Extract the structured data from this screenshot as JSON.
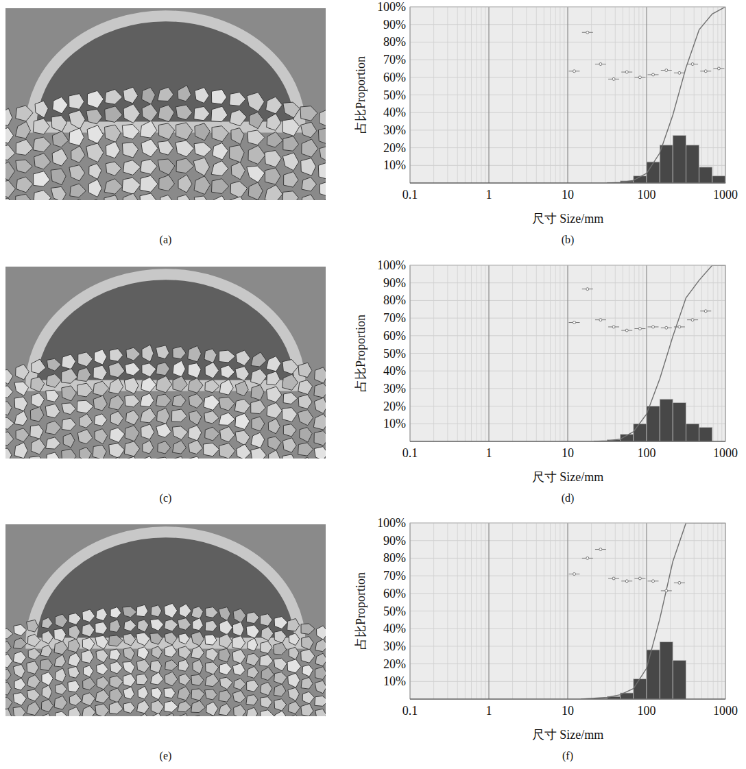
{
  "images": [
    {
      "caption": "(a)"
    },
    {
      "caption": "(c)"
    },
    {
      "caption": "(e)"
    }
  ],
  "chart_data": [
    {
      "type": "histogram",
      "caption": "(b)",
      "x_label": "尺寸 Size/mm",
      "y_label": "占比Proportion",
      "bins": [
        31.6,
        46.4,
        68.1,
        100,
        147,
        215,
        316,
        464,
        681,
        1000
      ],
      "values": [
        0.3,
        1.2,
        4,
        12,
        21.5,
        27,
        21.5,
        9,
        4
      ],
      "cumulative": {
        "x": [
          31.6,
          46.4,
          68.1,
          100,
          147,
          215,
          316,
          464,
          681,
          1000
        ],
        "values": [
          0,
          0.3,
          1.5,
          5.5,
          17,
          38.5,
          65.5,
          87,
          96,
          100
        ]
      },
      "points": {
        "x": [
          12.1,
          17.8,
          26.1,
          38.3,
          56.2,
          82.5,
          121,
          178,
          261,
          383,
          562,
          825
        ],
        "values": [
          63.5,
          85.5,
          67.5,
          59,
          63,
          60,
          61.5,
          64,
          62.5,
          67.5,
          63.5,
          65
        ]
      },
      "xlim": [
        0.1,
        1000
      ],
      "ylim": [
        0,
        100
      ],
      "xticks": [
        0.1,
        1,
        10,
        100,
        1000
      ],
      "yticks": [
        {
          "value": 10,
          "label": "10%"
        },
        {
          "value": 20,
          "label": "20%"
        },
        {
          "value": 30,
          "label": "30%"
        },
        {
          "value": 40,
          "label": "40%"
        },
        {
          "value": 50,
          "label": "50%"
        },
        {
          "value": 60,
          "label": "60%"
        },
        {
          "value": 70,
          "label": "70%"
        },
        {
          "value": 80,
          "label": "80%"
        },
        {
          "value": 90,
          "label": "90%"
        },
        {
          "value": 100,
          "label": "100%"
        }
      ],
      "log": "x",
      "grid": true,
      "color": "#474747"
    },
    {
      "type": "histogram",
      "caption": "(d)",
      "x_label": "尺寸 Size/mm",
      "y_label": "占比Proportion",
      "bins": [
        21.5,
        31.6,
        46.4,
        68.1,
        100,
        147,
        215,
        316,
        464,
        681
      ],
      "values": [
        0.3,
        1,
        4,
        10,
        20,
        24,
        22,
        10,
        8
      ],
      "cumulative": {
        "x": [
          21.5,
          31.6,
          46.4,
          68.1,
          100,
          147,
          215,
          316,
          464,
          681,
          1000
        ],
        "values": [
          0,
          0.3,
          1.3,
          5.5,
          15.5,
          35.5,
          59.5,
          81.5,
          91.5,
          100,
          100
        ]
      },
      "points": {
        "x": [
          12.1,
          17.8,
          26.1,
          38.3,
          56.2,
          82.5,
          121,
          178,
          261,
          383,
          562
        ],
        "values": [
          67.5,
          86.5,
          69,
          65,
          63,
          64,
          65,
          64.5,
          65,
          69,
          74
        ]
      },
      "xlim": [
        0.1,
        1000
      ],
      "ylim": [
        0,
        100
      ],
      "xticks": [
        0.1,
        1,
        10,
        100,
        1000
      ],
      "yticks": [
        {
          "value": 10,
          "label": "10%"
        },
        {
          "value": 20,
          "label": "20%"
        },
        {
          "value": 30,
          "label": "30%"
        },
        {
          "value": 40,
          "label": "40%"
        },
        {
          "value": 50,
          "label": "50%"
        },
        {
          "value": 60,
          "label": "60%"
        },
        {
          "value": 70,
          "label": "70%"
        },
        {
          "value": 80,
          "label": "80%"
        },
        {
          "value": 90,
          "label": "90%"
        },
        {
          "value": 100,
          "label": "100%"
        }
      ],
      "log": "x",
      "grid": true,
      "color": "#474747"
    },
    {
      "type": "histogram",
      "caption": "(f)",
      "x_label": "尺寸 Size/mm",
      "y_label": "占比Proportion",
      "bins": [
        21.5,
        31.6,
        46.4,
        68.1,
        100,
        147,
        215,
        316
      ],
      "values": [
        0.5,
        1.5,
        3.5,
        11.5,
        28,
        32.5,
        22
      ],
      "cumulative": {
        "x": [
          14.7,
          21.5,
          31.6,
          46.4,
          68.1,
          100,
          147,
          215,
          316,
          1000
        ],
        "values": [
          0,
          0.5,
          1,
          2.5,
          6,
          17.5,
          45.5,
          78,
          100,
          100
        ]
      },
      "points": {
        "x": [
          12.1,
          17.8,
          26.1,
          38.3,
          56.2,
          82.5,
          121,
          178,
          261
        ],
        "values": [
          71,
          80,
          85,
          68.5,
          67,
          68.5,
          67,
          61.5,
          66
        ]
      },
      "xlim": [
        0.1,
        1000
      ],
      "ylim": [
        0,
        100
      ],
      "xticks": [
        0.1,
        1,
        10,
        100,
        1000
      ],
      "yticks": [
        {
          "value": 10,
          "label": "10%"
        },
        {
          "value": 20,
          "label": "20%"
        },
        {
          "value": 30,
          "label": "30%"
        },
        {
          "value": 40,
          "label": "40%"
        },
        {
          "value": 50,
          "label": "50%"
        },
        {
          "value": 60,
          "label": "60%"
        },
        {
          "value": 70,
          "label": "70%"
        },
        {
          "value": 80,
          "label": "80%"
        },
        {
          "value": 90,
          "label": "90%"
        },
        {
          "value": 100,
          "label": "100%"
        }
      ],
      "log": "x",
      "grid": true,
      "color": "#474747"
    }
  ]
}
